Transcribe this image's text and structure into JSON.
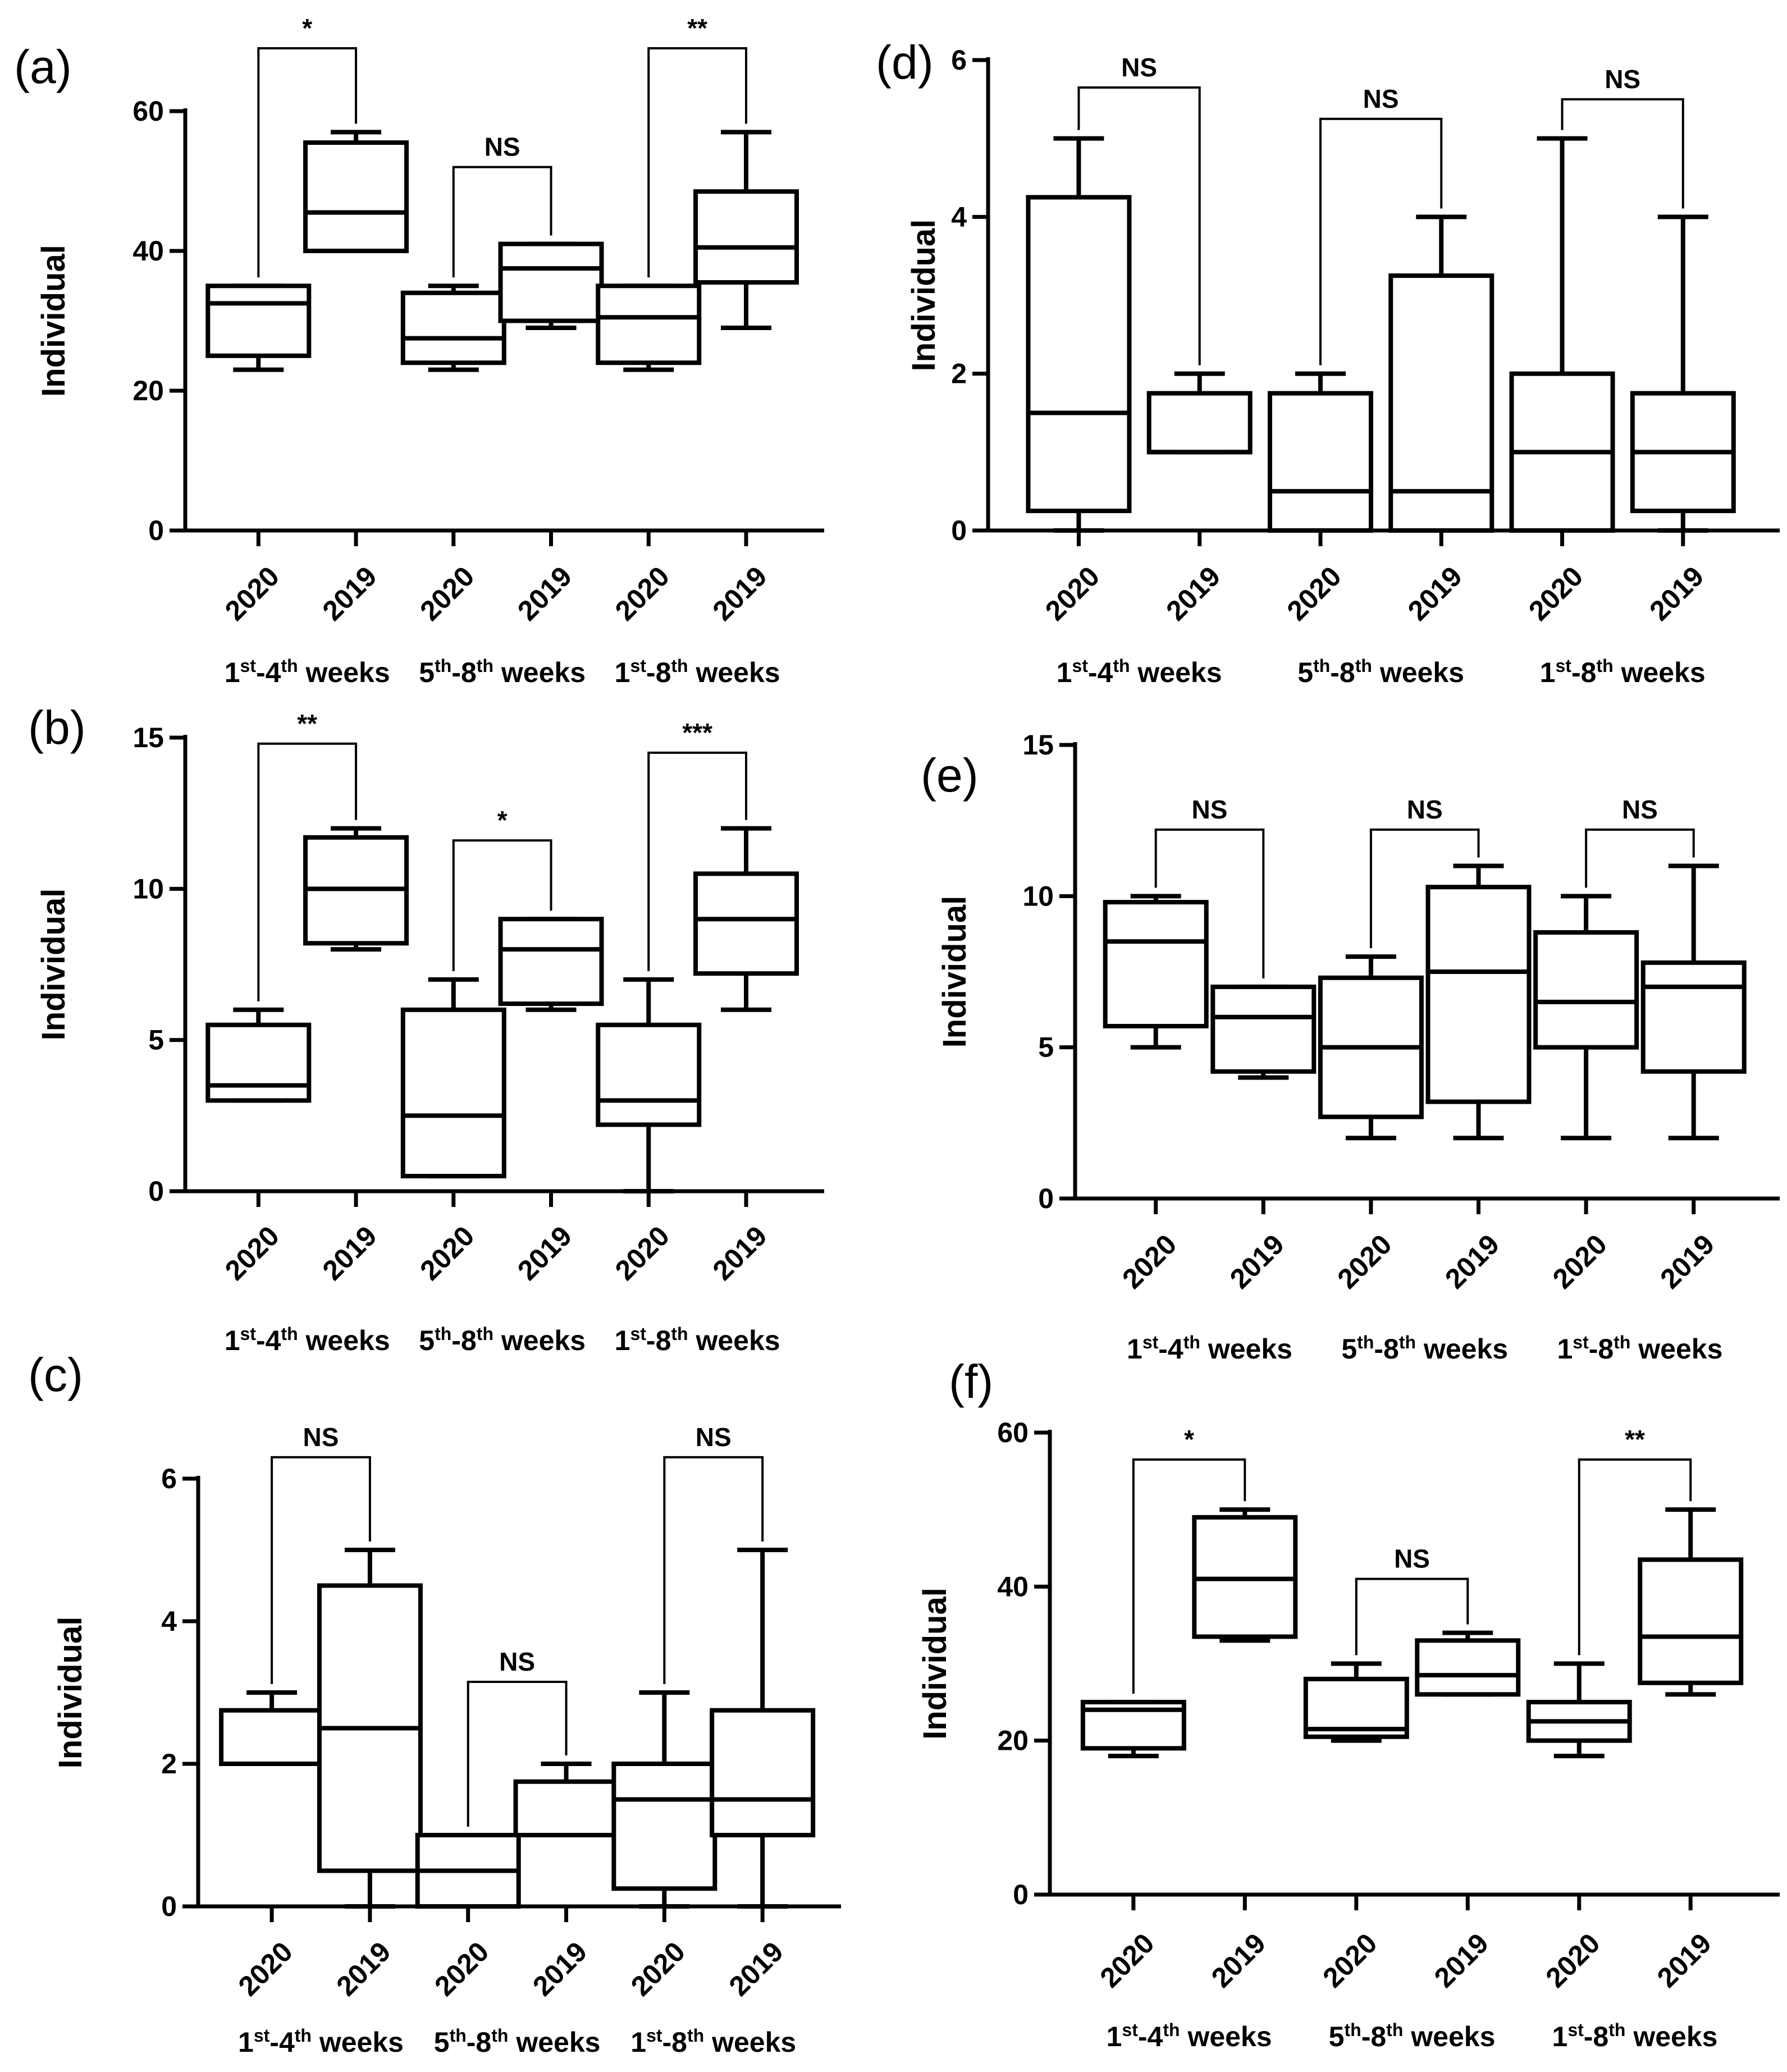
{
  "chart_data": [
    {
      "panel": "(a)",
      "type": "box",
      "ylabel": "Individual",
      "ylim": [
        0,
        60
      ],
      "yticks": [
        0,
        20,
        40,
        60
      ],
      "categories": [
        "2020",
        "2019",
        "2020",
        "2019",
        "2020",
        "2019"
      ],
      "groups": [
        {
          "text": "1",
          "sup1": "st",
          "mid": "-4",
          "sup2": "th",
          "tail": " weeks"
        },
        {
          "text": "5",
          "sup1": "th",
          "mid": "-8",
          "sup2": "th",
          "tail": " weeks"
        },
        {
          "text": "1",
          "sup1": "st",
          "mid": "-8",
          "sup2": "th",
          "tail": " weeks"
        }
      ],
      "boxes": [
        {
          "min": 23,
          "q1": 25,
          "median": 32.5,
          "q3": 35,
          "max": 35
        },
        {
          "min": 40,
          "q1": 40,
          "median": 45.5,
          "q3": 55.5,
          "max": 57
        },
        {
          "min": 23,
          "q1": 24,
          "median": 27.5,
          "q3": 34,
          "max": 35
        },
        {
          "min": 29,
          "q1": 30,
          "median": 37.5,
          "q3": 41,
          "max": 41
        },
        {
          "min": 23,
          "q1": 24,
          "median": 30.5,
          "q3": 35,
          "max": 35
        },
        {
          "min": 29,
          "q1": 35.5,
          "median": 40.5,
          "q3": 48.5,
          "max": 57
        }
      ],
      "comparisons": [
        {
          "from": 0,
          "to": 1,
          "label": "*",
          "y": 69
        },
        {
          "from": 2,
          "to": 3,
          "label": "NS",
          "y": 52
        },
        {
          "from": 4,
          "to": 5,
          "label": "**",
          "y": 69
        }
      ]
    },
    {
      "panel": "(b)",
      "type": "box",
      "ylabel": "Individual",
      "ylim": [
        0,
        15
      ],
      "yticks": [
        0,
        5,
        10,
        15
      ],
      "categories": [
        "2020",
        "2019",
        "2020",
        "2019",
        "2020",
        "2019"
      ],
      "groups": [
        {
          "text": "1",
          "sup1": "st",
          "mid": "-4",
          "sup2": "th",
          "tail": " weeks"
        },
        {
          "text": "5",
          "sup1": "th",
          "mid": "-8",
          "sup2": "th",
          "tail": " weeks"
        },
        {
          "text": "1",
          "sup1": "st",
          "mid": "-8",
          "sup2": "th",
          "tail": " weeks"
        }
      ],
      "boxes": [
        {
          "min": 3,
          "q1": 3,
          "median": 3.5,
          "q3": 5.5,
          "max": 6
        },
        {
          "min": 8,
          "q1": 8.2,
          "median": 10,
          "q3": 11.7,
          "max": 12
        },
        {
          "min": 0.5,
          "q1": 0.5,
          "median": 2.5,
          "q3": 6,
          "max": 7
        },
        {
          "min": 6,
          "q1": 6.2,
          "median": 8,
          "q3": 9,
          "max": 9
        },
        {
          "min": 0,
          "q1": 2.2,
          "median": 3,
          "q3": 5.5,
          "max": 7
        },
        {
          "min": 6,
          "q1": 7.2,
          "median": 9,
          "q3": 10.5,
          "max": 12
        }
      ],
      "comparisons": [
        {
          "from": 0,
          "to": 1,
          "label": "**",
          "y": 14.8
        },
        {
          "from": 2,
          "to": 3,
          "label": "*",
          "y": 11.6
        },
        {
          "from": 4,
          "to": 5,
          "label": "***",
          "y": 14.5
        }
      ]
    },
    {
      "panel": "(c)",
      "type": "box",
      "ylabel": "Individual",
      "ylim": [
        0,
        6
      ],
      "yticks": [
        0,
        2,
        4,
        6
      ],
      "categories": [
        "2020",
        "2019",
        "2020",
        "2019",
        "2020",
        "2019"
      ],
      "groups": [
        {
          "text": "1",
          "sup1": "st",
          "mid": "-4",
          "sup2": "th",
          "tail": " weeks"
        },
        {
          "text": "5",
          "sup1": "th",
          "mid": "-8",
          "sup2": "th",
          "tail": " weeks"
        },
        {
          "text": "1",
          "sup1": "st",
          "mid": "-8",
          "sup2": "th",
          "tail": " weeks"
        }
      ],
      "boxes": [
        {
          "min": 2,
          "q1": 2,
          "median": 2,
          "q3": 2.75,
          "max": 3
        },
        {
          "min": 0,
          "q1": 0.5,
          "median": 2.5,
          "q3": 4.5,
          "max": 5
        },
        {
          "min": 0,
          "q1": 0,
          "median": 0.5,
          "q3": 1,
          "max": 1
        },
        {
          "min": 1,
          "q1": 1,
          "median": 1,
          "q3": 1.75,
          "max": 2
        },
        {
          "min": 0,
          "q1": 0.25,
          "median": 1.5,
          "q3": 2,
          "max": 3
        },
        {
          "min": 0,
          "q1": 1,
          "median": 1.5,
          "q3": 2.75,
          "max": 5
        }
      ],
      "comparisons": [
        {
          "from": 0,
          "to": 1,
          "label": "NS",
          "y": 6.3
        },
        {
          "from": 2,
          "to": 3,
          "label": "NS",
          "y": 3.15
        },
        {
          "from": 4,
          "to": 5,
          "label": "NS",
          "y": 6.3
        }
      ]
    },
    {
      "panel": "(d)",
      "type": "box",
      "ylabel": "Individual",
      "ylim": [
        0,
        6
      ],
      "yticks": [
        0,
        2,
        4,
        6
      ],
      "categories": [
        "2020",
        "2019",
        "2020",
        "2019",
        "2020",
        "2019"
      ],
      "groups": [
        {
          "text": "1",
          "sup1": "st",
          "mid": "-4",
          "sup2": "th",
          "tail": " weeks"
        },
        {
          "text": "5",
          "sup1": "th",
          "mid": "-8",
          "sup2": "th",
          "tail": " weeks"
        },
        {
          "text": "1",
          "sup1": "st",
          "mid": "-8",
          "sup2": "th",
          "tail": " weeks"
        }
      ],
      "boxes": [
        {
          "min": 0,
          "q1": 0.25,
          "median": 1.5,
          "q3": 4.25,
          "max": 5
        },
        {
          "min": 1,
          "q1": 1,
          "median": 1,
          "q3": 1.75,
          "max": 2
        },
        {
          "min": 0,
          "q1": 0,
          "median": 0.5,
          "q3": 1.75,
          "max": 2
        },
        {
          "min": 0,
          "q1": 0,
          "median": 0.5,
          "q3": 3.25,
          "max": 4
        },
        {
          "min": 0,
          "q1": 0,
          "median": 1,
          "q3": 2,
          "max": 5
        },
        {
          "min": 0,
          "q1": 0.25,
          "median": 1,
          "q3": 1.75,
          "max": 4
        }
      ],
      "comparisons": [
        {
          "from": 0,
          "to": 1,
          "label": "NS",
          "y": 5.65
        },
        {
          "from": 2,
          "to": 3,
          "label": "NS",
          "y": 5.25
        },
        {
          "from": 4,
          "to": 5,
          "label": "NS",
          "y": 5.5
        }
      ]
    },
    {
      "panel": "(e)",
      "type": "box",
      "ylabel": "Individual",
      "ylim": [
        0,
        15
      ],
      "yticks": [
        0,
        5,
        10,
        15
      ],
      "categories": [
        "2020",
        "2019",
        "2020",
        "2019",
        "2020",
        "2019"
      ],
      "groups": [
        {
          "text": "1",
          "sup1": "st",
          "mid": "-4",
          "sup2": "th",
          "tail": " weeks"
        },
        {
          "text": "5",
          "sup1": "th",
          "mid": "-8",
          "sup2": "th",
          "tail": " weeks"
        },
        {
          "text": "1",
          "sup1": "st",
          "mid": "-8",
          "sup2": "th",
          "tail": " weeks"
        }
      ],
      "boxes": [
        {
          "min": 5,
          "q1": 5.7,
          "median": 8.5,
          "q3": 9.8,
          "max": 10
        },
        {
          "min": 4,
          "q1": 4.2,
          "median": 6,
          "q3": 7,
          "max": 7
        },
        {
          "min": 2,
          "q1": 2.7,
          "median": 5,
          "q3": 7.3,
          "max": 8
        },
        {
          "min": 2,
          "q1": 3.2,
          "median": 7.5,
          "q3": 10.3,
          "max": 11
        },
        {
          "min": 2,
          "q1": 5,
          "median": 6.5,
          "q3": 8.8,
          "max": 10
        },
        {
          "min": 2,
          "q1": 4.2,
          "median": 7,
          "q3": 7.8,
          "max": 11
        }
      ],
      "comparisons": [
        {
          "from": 0,
          "to": 1,
          "label": "NS",
          "y": 12.2
        },
        {
          "from": 2,
          "to": 3,
          "label": "NS",
          "y": 12.2
        },
        {
          "from": 4,
          "to": 5,
          "label": "NS",
          "y": 12.2
        }
      ]
    },
    {
      "panel": "(f)",
      "type": "box",
      "ylabel": "Individual",
      "ylim": [
        0,
        60
      ],
      "yticks": [
        0,
        20,
        40,
        60
      ],
      "categories": [
        "2020",
        "2019",
        "2020",
        "2019",
        "2020",
        "2019"
      ],
      "groups": [
        {
          "text": "1",
          "sup1": "st",
          "mid": "-4",
          "sup2": "th",
          "tail": " weeks"
        },
        {
          "text": "5",
          "sup1": "th",
          "mid": "-8",
          "sup2": "th",
          "tail": " weeks"
        },
        {
          "text": "1",
          "sup1": "st",
          "mid": "-8",
          "sup2": "th",
          "tail": " weeks"
        }
      ],
      "boxes": [
        {
          "min": 18,
          "q1": 19,
          "median": 24,
          "q3": 25,
          "max": 25
        },
        {
          "min": 33,
          "q1": 33.5,
          "median": 41,
          "q3": 49,
          "max": 50
        },
        {
          "min": 20,
          "q1": 20.5,
          "median": 21.5,
          "q3": 28,
          "max": 30
        },
        {
          "min": 26,
          "q1": 26,
          "median": 28.5,
          "q3": 33,
          "max": 34
        },
        {
          "min": 18,
          "q1": 20,
          "median": 22.5,
          "q3": 25,
          "max": 30
        },
        {
          "min": 26,
          "q1": 27.5,
          "median": 33.5,
          "q3": 43.5,
          "max": 50
        }
      ],
      "comparisons": [
        {
          "from": 0,
          "to": 1,
          "label": "*",
          "y": 56.5
        },
        {
          "from": 2,
          "to": 3,
          "label": "NS",
          "y": 41
        },
        {
          "from": 4,
          "to": 5,
          "label": "**",
          "y": 56.5
        }
      ]
    }
  ]
}
